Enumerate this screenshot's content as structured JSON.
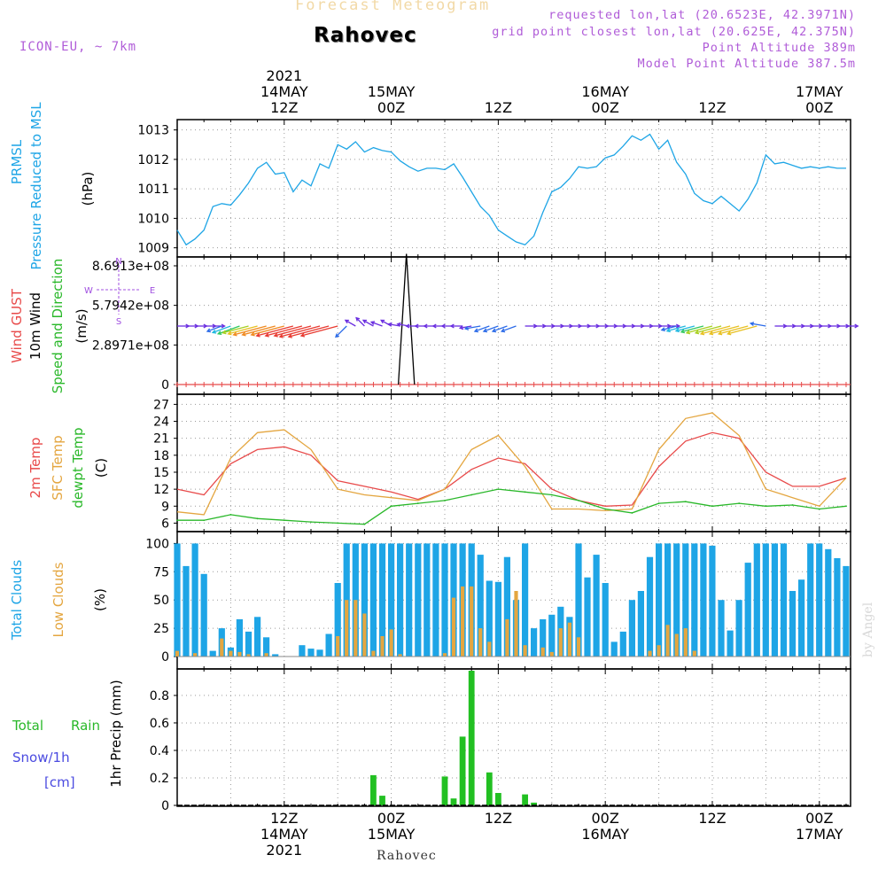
{
  "header": {
    "product": "Forecast Meteogram",
    "model": "ICON-EU, ~ 7km",
    "location_title": "Rahovec",
    "requested_point": "requested lon,lat (20.6523E, 42.3971N)",
    "grid_point": "grid point closest lon,lat (20.625E, 42.375N)",
    "point_altitude": "Point Altitude 389m",
    "model_point_altitude": "Model Point Altitude 387.5m"
  },
  "footer": {
    "location": "Rahovec",
    "watermark": "by Angel"
  },
  "time_axis": {
    "top_ticks": [
      {
        "h": 12,
        "lines": [
          "2021",
          "14MAY",
          "12Z"
        ]
      },
      {
        "h": 24,
        "lines": [
          "15MAY",
          "00Z"
        ]
      },
      {
        "h": 36,
        "lines": [
          "12Z"
        ]
      },
      {
        "h": 48,
        "lines": [
          "16MAY",
          "00Z"
        ]
      },
      {
        "h": 60,
        "lines": [
          "12Z"
        ]
      },
      {
        "h": 72,
        "lines": [
          "17MAY",
          "00Z"
        ]
      }
    ],
    "bottom_ticks": [
      {
        "h": 12,
        "lines": [
          "12Z",
          "14MAY",
          "2021"
        ]
      },
      {
        "h": 24,
        "lines": [
          "00Z",
          "15MAY"
        ]
      },
      {
        "h": 36,
        "lines": [
          "12Z"
        ]
      },
      {
        "h": 48,
        "lines": [
          "00Z",
          "16MAY"
        ]
      },
      {
        "h": 60,
        "lines": [
          "12Z"
        ]
      },
      {
        "h": 72,
        "lines": [
          "00Z",
          "17MAY"
        ]
      }
    ]
  },
  "chart_data": [
    {
      "type": "line",
      "id": "pressure",
      "labels": [
        {
          "text": "PRMSL",
          "color": "#1ea5e6"
        },
        {
          "text": "Pressure Reduced to MSL",
          "color": "#1ea5e6"
        },
        {
          "text": "(hPa)",
          "color": "#000000"
        }
      ],
      "ylim": [
        1008.9,
        1013.2
      ],
      "y_ticks": [
        1009,
        1010,
        1011,
        1012,
        1013
      ],
      "grid": true,
      "series": [
        {
          "name": "PRMSL",
          "color": "#1ea5e6",
          "x": [
            0,
            1,
            2,
            3,
            4,
            5,
            6,
            7,
            8,
            9,
            10,
            11,
            12,
            13,
            14,
            15,
            16,
            17,
            18,
            19,
            20,
            21,
            22,
            23,
            24,
            25,
            26,
            27,
            28,
            29,
            30,
            31,
            32,
            33,
            34,
            35,
            36,
            37,
            38,
            39,
            40,
            41,
            42,
            43,
            44,
            45,
            46,
            47,
            48,
            49,
            50,
            51,
            52,
            53,
            54,
            55,
            56,
            57,
            58,
            59,
            60,
            61,
            62,
            63,
            64,
            65,
            66,
            67,
            68,
            69,
            70,
            71,
            72,
            73,
            74,
            75
          ],
          "values": [
            1009.6,
            1009.1,
            1009.3,
            1009.6,
            1010.4,
            1010.5,
            1010.45,
            1010.8,
            1011.2,
            1011.7,
            1011.9,
            1011.5,
            1011.55,
            1010.9,
            1011.3,
            1011.1,
            1011.85,
            1011.7,
            1012.5,
            1012.35,
            1012.6,
            1012.25,
            1012.4,
            1012.3,
            1012.25,
            1011.95,
            1011.75,
            1011.6,
            1011.7,
            1011.7,
            1011.65,
            1011.85,
            1011.4,
            1010.9,
            1010.4,
            1010.1,
            1009.6,
            1009.4,
            1009.2,
            1009.1,
            1009.4,
            1010.2,
            1010.9,
            1011.05,
            1011.35,
            1011.75,
            1011.7,
            1011.75,
            1012.05,
            1012.15,
            1012.45,
            1012.8,
            1012.65,
            1012.85,
            1012.35,
            1012.65,
            1011.9,
            1011.5,
            1010.85,
            1010.6,
            1010.5,
            1010.75,
            1010.5,
            1010.25,
            1010.65,
            1011.2,
            1012.15,
            1011.85,
            1011.9,
            1011.8,
            1011.7,
            1011.75,
            1011.7,
            1011.75,
            1011.7,
            1011.7
          ]
        }
      ]
    },
    {
      "type": "line",
      "id": "wind",
      "labels": [
        {
          "text": "Wind GUST",
          "color": "#e84a4a"
        },
        {
          "text": "10m Wind",
          "color": "#000000"
        },
        {
          "text": "Speed and Direction",
          "color": "#2ab82a"
        },
        {
          "text": "(m/s)",
          "color": "#000000"
        }
      ],
      "ylim": [
        0,
        1.0
      ],
      "y_ticks": [
        {
          "v": 0,
          "label": "0"
        },
        {
          "v": 0.333,
          "label": "2.8971e+08"
        },
        {
          "v": 0.667,
          "label": "5.7942e+08"
        },
        {
          "v": 1.0,
          "label": "8.6913e+08"
        }
      ],
      "grid": true,
      "compass": {
        "n": "N",
        "s": "S",
        "w": "W",
        "e": "E",
        "color": "#a050e0"
      },
      "gust_spike": {
        "x": [
          24.8,
          25.7,
          26.6
        ],
        "y": [
          0,
          1.1,
          0
        ],
        "color": "#000000"
      },
      "gust_baseline_color": "#e84a4a",
      "wind_arrows": {
        "x": [
          0,
          1,
          2,
          3,
          4,
          5,
          6,
          7,
          8,
          9,
          10,
          11,
          12,
          13,
          14,
          15,
          16,
          17,
          18,
          19,
          20,
          21,
          22,
          23,
          24,
          25,
          26,
          27,
          28,
          29,
          30,
          31,
          32,
          33,
          34,
          35,
          36,
          37,
          38,
          39,
          40,
          41,
          42,
          43,
          44,
          45,
          46,
          47,
          48,
          49,
          50,
          51,
          52,
          53,
          54,
          55,
          56,
          57,
          58,
          59,
          60,
          61,
          62,
          63,
          64,
          65,
          66,
          67,
          68,
          69,
          70,
          71,
          72,
          73,
          74,
          75
        ],
        "speed": [
          1,
          1,
          1,
          1,
          1,
          2,
          3,
          4,
          5,
          6,
          7,
          7,
          7,
          8,
          8,
          8,
          9,
          9,
          8,
          2,
          1,
          1,
          1,
          1,
          1,
          1,
          1,
          1,
          1,
          1,
          1,
          1,
          1,
          1,
          2,
          2,
          2,
          2,
          2,
          1,
          1,
          1,
          1,
          1,
          1,
          1,
          1,
          1,
          1,
          1,
          1,
          1,
          1,
          1,
          1,
          1,
          2,
          3,
          3,
          4,
          5,
          5,
          6,
          6,
          6,
          6,
          2,
          1,
          1,
          1,
          1,
          1,
          1,
          1,
          1,
          1
        ],
        "dir_deg": [
          90,
          90,
          90,
          90,
          90,
          250,
          250,
          250,
          255,
          255,
          255,
          255,
          255,
          255,
          255,
          255,
          255,
          255,
          255,
          225,
          300,
          315,
          300,
          290,
          300,
          280,
          280,
          270,
          270,
          270,
          270,
          270,
          270,
          260,
          260,
          250,
          250,
          250,
          250,
          90,
          90,
          90,
          90,
          90,
          90,
          90,
          90,
          90,
          90,
          90,
          90,
          90,
          90,
          90,
          90,
          90,
          255,
          255,
          255,
          255,
          255,
          255,
          255,
          255,
          255,
          255,
          280,
          90,
          90,
          90,
          90,
          90,
          90,
          90,
          90,
          90
        ]
      }
    },
    {
      "type": "line",
      "id": "temperature",
      "labels": [
        {
          "text": "2m Temp",
          "color": "#e84a4a"
        },
        {
          "text": "SFC Temp",
          "color": "#e4a640"
        },
        {
          "text": "dewpt Temp",
          "color": "#2ab82a"
        },
        {
          "text": "(C)",
          "color": "#000000"
        }
      ],
      "ylim": [
        4.5,
        28
      ],
      "y_ticks": [
        6,
        9,
        12,
        15,
        18,
        21,
        24,
        27
      ],
      "grid": true,
      "series": [
        {
          "name": "2m Temp",
          "color": "#e84a4a",
          "x": [
            0,
            3,
            6,
            9,
            12,
            15,
            18,
            21,
            24,
            27,
            30,
            33,
            36,
            39,
            42,
            45,
            48,
            51,
            54,
            57,
            60,
            63,
            66,
            69,
            72,
            75
          ],
          "values": [
            12,
            11,
            16.5,
            19,
            19.5,
            18,
            13.5,
            12.5,
            11.5,
            10.2,
            12,
            15.5,
            17.5,
            16.5,
            12,
            10,
            9,
            9.2,
            16,
            20.5,
            22,
            21,
            15,
            12.5,
            12.5,
            14
          ]
        },
        {
          "name": "SFC Temp",
          "color": "#e4a640",
          "x": [
            0,
            3,
            6,
            9,
            12,
            15,
            18,
            21,
            24,
            27,
            30,
            33,
            36,
            39,
            42,
            45,
            48,
            51,
            54,
            57,
            60,
            63,
            66,
            69,
            72,
            75
          ],
          "values": [
            8,
            7.5,
            17.5,
            22,
            22.5,
            19,
            12,
            11,
            10.5,
            10,
            12,
            19,
            21.5,
            16,
            8.5,
            8.5,
            8.2,
            8.5,
            19,
            24.5,
            25.5,
            21.5,
            12,
            10.5,
            9,
            14
          ]
        },
        {
          "name": "dewpt Temp",
          "color": "#2ab82a",
          "x": [
            0,
            3,
            6,
            9,
            12,
            15,
            18,
            21,
            24,
            27,
            30,
            33,
            36,
            39,
            42,
            45,
            48,
            51,
            54,
            57,
            60,
            63,
            66,
            69,
            72,
            75
          ],
          "values": [
            6.5,
            6.5,
            7.5,
            6.8,
            6.5,
            6.2,
            6,
            5.8,
            9,
            9.5,
            10,
            11,
            12,
            11.5,
            11,
            10,
            8.5,
            7.8,
            9.5,
            9.8,
            9,
            9.5,
            9,
            9.2,
            8.5,
            9
          ]
        }
      ]
    },
    {
      "type": "bar",
      "id": "clouds",
      "labels": [
        {
          "text": "Total Clouds",
          "color": "#1ea5e6"
        },
        {
          "text": "Low Clouds",
          "color": "#e4a640"
        },
        {
          "text": "(%)",
          "color": "#000000"
        }
      ],
      "ylim": [
        0,
        105
      ],
      "y_ticks": [
        0,
        25,
        50,
        75,
        100
      ],
      "grid": true,
      "series": [
        {
          "name": "Total Clouds",
          "color": "#1ea5e6",
          "x": [
            0,
            1,
            2,
            3,
            4,
            5,
            6,
            7,
            8,
            9,
            10,
            11,
            12,
            13,
            14,
            15,
            16,
            17,
            18,
            19,
            20,
            21,
            22,
            23,
            24,
            25,
            26,
            27,
            28,
            29,
            30,
            31,
            32,
            33,
            34,
            35,
            36,
            37,
            38,
            39,
            40,
            41,
            42,
            43,
            44,
            45,
            46,
            47,
            48,
            49,
            50,
            51,
            52,
            53,
            54,
            55,
            56,
            57,
            58,
            59,
            60,
            61,
            62,
            63,
            64,
            65,
            66,
            67,
            68,
            69,
            70,
            71,
            72,
            73,
            74,
            75
          ],
          "values": [
            100,
            80,
            100,
            73,
            5,
            25,
            8,
            33,
            22,
            35,
            17,
            2,
            0,
            0,
            10,
            7,
            6,
            20,
            65,
            100,
            100,
            100,
            100,
            100,
            100,
            100,
            100,
            100,
            100,
            100,
            100,
            100,
            100,
            100,
            90,
            67,
            66,
            88,
            50,
            100,
            25,
            33,
            37,
            44,
            35,
            100,
            70,
            90,
            65,
            13,
            22,
            50,
            58,
            88,
            100,
            100,
            100,
            100,
            100,
            100,
            98,
            50,
            23,
            50,
            83,
            100,
            100,
            100,
            100,
            58,
            68,
            100,
            100,
            95,
            87,
            80
          ]
        },
        {
          "name": "Low Clouds",
          "color": "#e4a640",
          "x": [
            0,
            1,
            2,
            3,
            4,
            5,
            6,
            7,
            8,
            9,
            10,
            11,
            12,
            13,
            14,
            15,
            16,
            17,
            18,
            19,
            20,
            21,
            22,
            23,
            24,
            25,
            26,
            27,
            28,
            29,
            30,
            31,
            32,
            33,
            34,
            35,
            36,
            37,
            38,
            39,
            40,
            41,
            42,
            43,
            44,
            45,
            46,
            47,
            48,
            49,
            50,
            51,
            52,
            53,
            54,
            55,
            56,
            57,
            58,
            59,
            60,
            61,
            62,
            63,
            64,
            65,
            66,
            67,
            68,
            69,
            70,
            71,
            72,
            73,
            74,
            75
          ],
          "values": [
            5,
            0,
            3,
            0,
            0,
            16,
            5,
            4,
            2,
            0,
            3,
            0,
            0,
            0,
            0,
            0,
            0,
            0,
            18,
            50,
            50,
            38,
            5,
            18,
            24,
            2,
            0,
            0,
            0,
            0,
            3,
            52,
            62,
            62,
            25,
            13,
            0,
            33,
            58,
            10,
            0,
            8,
            4,
            25,
            30,
            17,
            0,
            0,
            0,
            0,
            0,
            0,
            0,
            5,
            10,
            28,
            20,
            25,
            5,
            0,
            0,
            0,
            0,
            0,
            0,
            0,
            0,
            0,
            0,
            0,
            0,
            0,
            0,
            0,
            0,
            0
          ]
        }
      ]
    },
    {
      "type": "bar",
      "id": "precip",
      "labels": [
        {
          "text": "Total",
          "color": "#2ab82a"
        },
        {
          "text": "Rain",
          "color": "#2ab82a"
        },
        {
          "text": "Snow/1h",
          "color": "#4a4ae0"
        },
        {
          "text": "[cm]",
          "color": "#4a4ae0"
        },
        {
          "text": "1hr Precip (mm)",
          "color": "#000000"
        }
      ],
      "ylim": [
        0,
        0.98
      ],
      "y_ticks": [
        0,
        0.2,
        0.4,
        0.6,
        0.8
      ],
      "grid": true,
      "series": [
        {
          "name": "Total Rain",
          "color": "#22c022",
          "x": [
            22,
            23,
            30,
            31,
            32,
            33,
            35,
            36,
            39,
            40
          ],
          "values": [
            0.22,
            0.07,
            0.21,
            0.05,
            0.5,
            0.98,
            0.24,
            0.09,
            0.08,
            0.02
          ]
        }
      ]
    }
  ]
}
